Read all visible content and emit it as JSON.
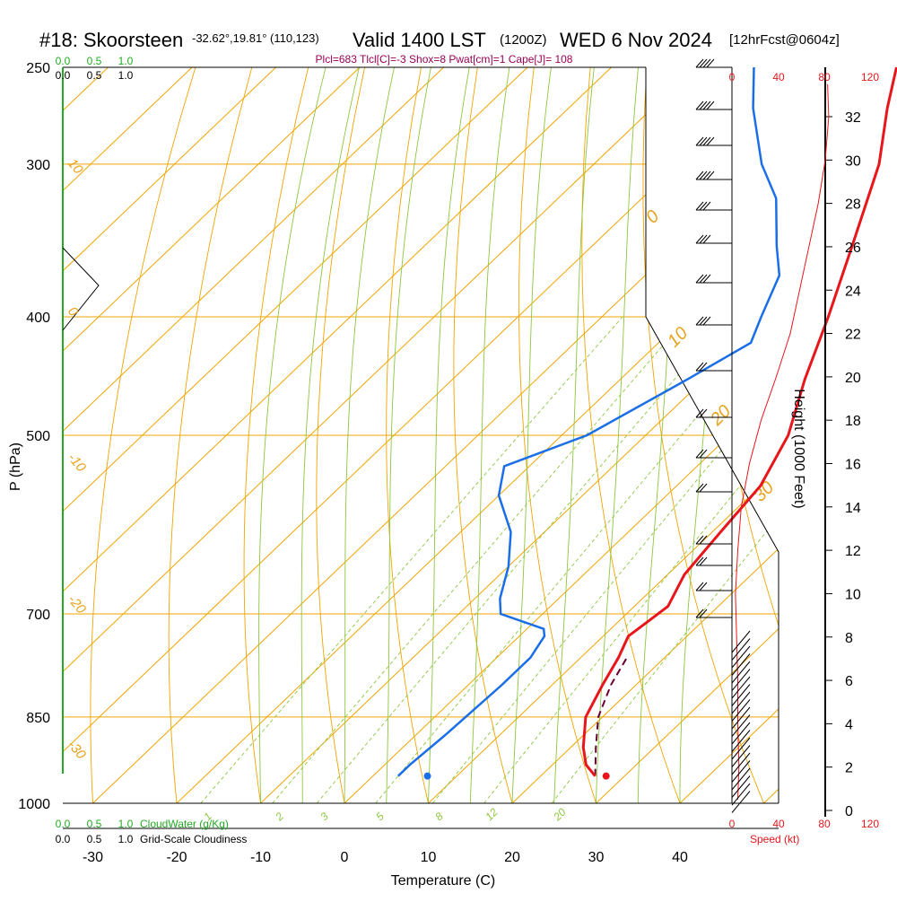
{
  "title": {
    "station": "#18: Skoorsteen",
    "coords": "-32.62°,19.81° (110,123)",
    "valid": "Valid 1400 LST",
    "zulu": "(1200Z)",
    "date": "WED 6 Nov 2024",
    "forecast": "[12hrFcst@0604z]"
  },
  "indices": "Plcl=683 Tlcl[C]=-3 Shox=8 Pwat[cm]=1 Cape[J]= 108",
  "colors": {
    "isotherm": "#f0a500",
    "dry_adiabat": "#8ec63f",
    "temperature": "#e8161b",
    "dewpoint": "#1a6ee8",
    "parcel": "#6b0033",
    "mixing_ratio": "#8ec63f",
    "speed": "#e8161b",
    "cloud": "#22aa22"
  },
  "chart_data": {
    "type": "skew-t",
    "xlabel": "Temperature (C)",
    "ylabel": "P (hPa)",
    "xlim": [
      -35,
      45
    ],
    "ylim": [
      1000,
      250
    ],
    "x_ticks": [
      "-30",
      "-20",
      "-10",
      "0",
      "10",
      "20",
      "30",
      "40"
    ],
    "p_ticks": [
      "250",
      "300",
      "400",
      "500",
      "700",
      "850",
      "1000"
    ],
    "isotherm_labels": [
      "10",
      "0",
      "-10",
      "-20",
      "-30"
    ],
    "isotherm_labels_right": [
      "0",
      "10",
      "20",
      "30"
    ],
    "mixing_ratio_labels": [
      "1",
      "2",
      "3",
      "5",
      "8",
      "12",
      "20"
    ],
    "temperature": [
      {
        "p": 950,
        "t": 26.5
      },
      {
        "p": 930,
        "t": 24
      },
      {
        "p": 900,
        "t": 21.5
      },
      {
        "p": 850,
        "t": 18
      },
      {
        "p": 800,
        "t": 16
      },
      {
        "p": 760,
        "t": 14.5
      },
      {
        "p": 730,
        "t": 13
      },
      {
        "p": 710,
        "t": 13.5
      },
      {
        "p": 690,
        "t": 14
      },
      {
        "p": 650,
        "t": 12
      },
      {
        "p": 600,
        "t": 11
      },
      {
        "p": 550,
        "t": 10
      },
      {
        "p": 500,
        "t": 7
      },
      {
        "p": 450,
        "t": 2
      },
      {
        "p": 400,
        "t": -3
      },
      {
        "p": 350,
        "t": -9
      },
      {
        "p": 300,
        "t": -16
      },
      {
        "p": 270,
        "t": -22
      },
      {
        "p": 250,
        "t": -26
      }
    ],
    "dewpoint": [
      {
        "p": 950,
        "t": 3
      },
      {
        "p": 930,
        "t": 3
      },
      {
        "p": 880,
        "t": 3.5
      },
      {
        "p": 800,
        "t": 4
      },
      {
        "p": 760,
        "t": 4
      },
      {
        "p": 730,
        "t": 3
      },
      {
        "p": 720,
        "t": 2
      },
      {
        "p": 700,
        "t": -5
      },
      {
        "p": 680,
        "t": -7
      },
      {
        "p": 640,
        "t": -10
      },
      {
        "p": 600,
        "t": -14
      },
      {
        "p": 560,
        "t": -20
      },
      {
        "p": 530,
        "t": -23
      },
      {
        "p": 500,
        "t": -17
      },
      {
        "p": 450,
        "t": -12
      },
      {
        "p": 420,
        "t": -9
      },
      {
        "p": 400,
        "t": -11
      },
      {
        "p": 370,
        "t": -14
      },
      {
        "p": 350,
        "t": -18
      },
      {
        "p": 320,
        "t": -24
      },
      {
        "p": 300,
        "t": -30
      },
      {
        "p": 270,
        "t": -38
      },
      {
        "p": 250,
        "t": -43
      }
    ],
    "parcel": [
      {
        "p": 950,
        "t": 26.5
      },
      {
        "p": 900,
        "t": 23
      },
      {
        "p": 850,
        "t": 19.5
      },
      {
        "p": 800,
        "t": 17
      },
      {
        "p": 760,
        "t": 15.5
      }
    ],
    "surface_temperature": 27.8,
    "surface_dewpoint": 6.5,
    "surface_pressure": 950,
    "height_ticks": [
      "0",
      "2",
      "4",
      "6",
      "8",
      "10",
      "12",
      "14",
      "16",
      "18",
      "20",
      "22",
      "24",
      "26",
      "28",
      "30",
      "32"
    ],
    "height_label": "Height (1000 Feet)",
    "speed_ticks": [
      "0",
      "40",
      "80",
      "120"
    ],
    "speed_label": "Speed (kt)",
    "wind_speed_profile": [
      {
        "h": 0.5,
        "s": 5
      },
      {
        "h": 2,
        "s": 6
      },
      {
        "h": 4,
        "s": 5
      },
      {
        "h": 6,
        "s": 5
      },
      {
        "h": 8,
        "s": 4
      },
      {
        "h": 10,
        "s": 3
      },
      {
        "h": 12,
        "s": 5
      },
      {
        "h": 14,
        "s": 8
      },
      {
        "h": 16,
        "s": 15
      },
      {
        "h": 18,
        "s": 25
      },
      {
        "h": 20,
        "s": 38
      },
      {
        "h": 22,
        "s": 50
      },
      {
        "h": 24,
        "s": 58
      },
      {
        "h": 26,
        "s": 66
      },
      {
        "h": 28,
        "s": 74
      },
      {
        "h": 30,
        "s": 80
      },
      {
        "h": 32,
        "s": 83
      },
      {
        "h": 33.5,
        "s": 82
      }
    ],
    "cloud_ticks": [
      "0.0",
      "0.5",
      "1.0"
    ],
    "cloud_water_label": "CloudWater (g/Kg)",
    "cloudiness_label": "Grid-Scale Cloudiness"
  }
}
